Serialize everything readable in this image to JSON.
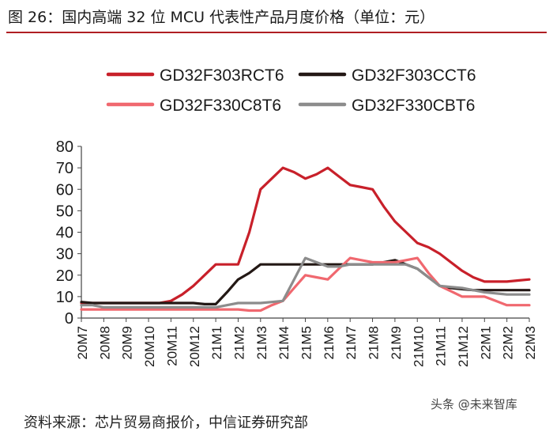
{
  "figure_title": "图 26：国内高端 32 位 MCU 代表性产品月度价格（单位：元）",
  "source_text": "资料来源：芯片贸易商报价，中信证券研究部",
  "watermark": "头条 @未来智库",
  "chart_data": {
    "type": "line",
    "title": "图 26：国内高端 32 位 MCU 代表性产品月度价格（单位：元）",
    "xlabel": "",
    "ylabel": "",
    "ylim": [
      0,
      80
    ],
    "yticks": [
      0,
      10,
      20,
      30,
      40,
      50,
      60,
      70,
      80
    ],
    "grid": false,
    "legend_position": "top",
    "categories": [
      "20M7",
      "20M8",
      "20M9",
      "20M10",
      "20M11",
      "20M12",
      "21M1",
      "21M2",
      "21M3",
      "21M4",
      "21M5",
      "21M6",
      "21M7",
      "21M8",
      "21M9",
      "21M10",
      "21M11",
      "21M12",
      "22M1",
      "22M2",
      "22M3"
    ],
    "x": [
      0,
      0.5,
      1,
      1.5,
      2,
      2.5,
      3,
      3.5,
      4,
      4.5,
      5,
      5.5,
      6,
      6.5,
      7,
      7.5,
      8,
      8.5,
      9,
      9.5,
      10,
      10.5,
      11,
      11.5,
      12,
      12.5,
      13,
      13.5,
      14,
      14.5,
      15,
      15.5,
      16,
      16.5,
      17,
      17.5,
      18,
      18.5,
      19,
      19.5,
      20
    ],
    "series": [
      {
        "name": "GD32F303RCT6",
        "color": "#c8202a",
        "values": [
          7,
          7,
          7,
          7,
          7,
          7,
          7,
          7,
          8,
          11,
          15,
          20,
          25,
          25,
          25,
          40,
          60,
          65,
          70,
          68,
          65,
          67,
          70,
          66,
          62,
          61,
          60,
          52,
          45,
          40,
          35,
          33,
          30,
          26,
          22,
          19,
          17,
          17,
          17,
          17.5,
          18
        ]
      },
      {
        "name": "GD32F303CCT6",
        "color": "#231815",
        "values": [
          7.5,
          7,
          7,
          7,
          7,
          7,
          7,
          7,
          7,
          7,
          7,
          6.5,
          6.5,
          12,
          18,
          21,
          25,
          25,
          25,
          25,
          25,
          25,
          25,
          25,
          25,
          25,
          25,
          26,
          27,
          25,
          23,
          19,
          15,
          14,
          13.5,
          13,
          13,
          13,
          13,
          13,
          13
        ]
      },
      {
        "name": "GD32F330C8T6",
        "color": "#f0686f",
        "values": [
          4,
          4,
          4,
          4,
          4,
          4,
          4,
          4,
          4,
          4,
          4,
          4,
          4,
          4,
          4,
          3.5,
          3.5,
          6,
          8,
          14,
          20,
          19,
          18,
          23,
          28,
          27,
          26,
          26,
          26,
          27,
          28,
          21,
          15,
          12.5,
          10,
          10,
          10,
          8,
          6,
          6,
          6
        ]
      },
      {
        "name": "GD32F330CBT6",
        "color": "#8c8c8c",
        "values": [
          6,
          6,
          5,
          5,
          5,
          5,
          5,
          5,
          5,
          5,
          5,
          5,
          5,
          6,
          7,
          7,
          7,
          7.5,
          8,
          18,
          28,
          26,
          24,
          24,
          25,
          25,
          25,
          25,
          25,
          25,
          23,
          19,
          15,
          14.5,
          14,
          13,
          12,
          11.5,
          11,
          11,
          11
        ]
      }
    ]
  }
}
